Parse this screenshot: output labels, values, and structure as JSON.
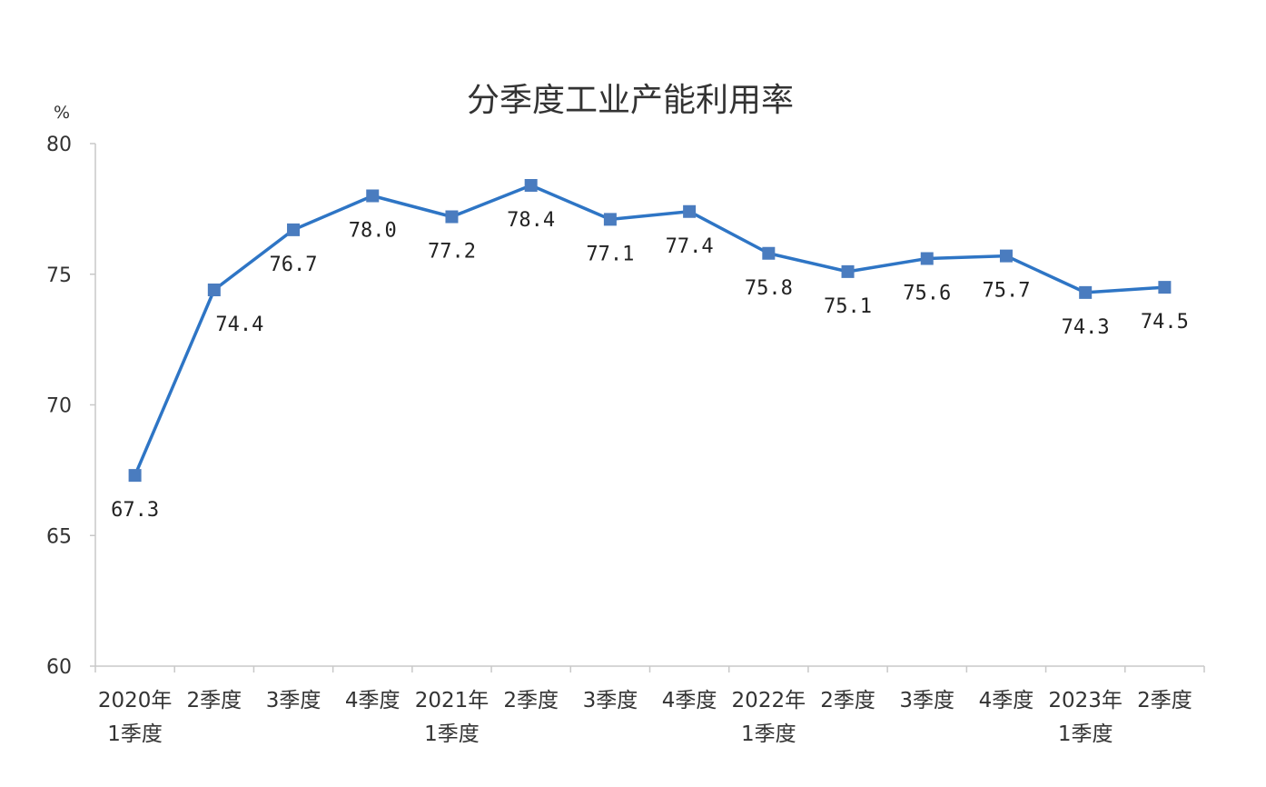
{
  "chart_data": {
    "type": "line",
    "title": "分季度工业产能利用率",
    "ylabel": "%",
    "xlabel": "",
    "ylim": [
      60,
      80
    ],
    "yticks": [
      60,
      65,
      70,
      75,
      80
    ],
    "grid": false,
    "legend": "none",
    "categories": [
      [
        "2020年",
        "1季度"
      ],
      [
        "2季度"
      ],
      [
        "3季度"
      ],
      [
        "4季度"
      ],
      [
        "2021年",
        "1季度"
      ],
      [
        "2季度"
      ],
      [
        "3季度"
      ],
      [
        "4季度"
      ],
      [
        "2022年",
        "1季度"
      ],
      [
        "2季度"
      ],
      [
        "3季度"
      ],
      [
        "4季度"
      ],
      [
        "2023年",
        "1季度"
      ],
      [
        "2季度"
      ]
    ],
    "series": [
      {
        "values": [
          67.3,
          74.4,
          76.7,
          78.0,
          77.2,
          78.4,
          77.1,
          77.4,
          75.8,
          75.1,
          75.6,
          75.7,
          74.3,
          74.5
        ],
        "labels": [
          "67.3",
          "74.4",
          "76.7",
          "78.0",
          "77.2",
          "78.4",
          "77.1",
          "77.4",
          "75.8",
          "75.1",
          "75.6",
          "75.7",
          "74.3",
          "74.5"
        ],
        "color": "#2e75c5",
        "marker_color": "#4a7cbf",
        "marker": "square"
      }
    ]
  }
}
